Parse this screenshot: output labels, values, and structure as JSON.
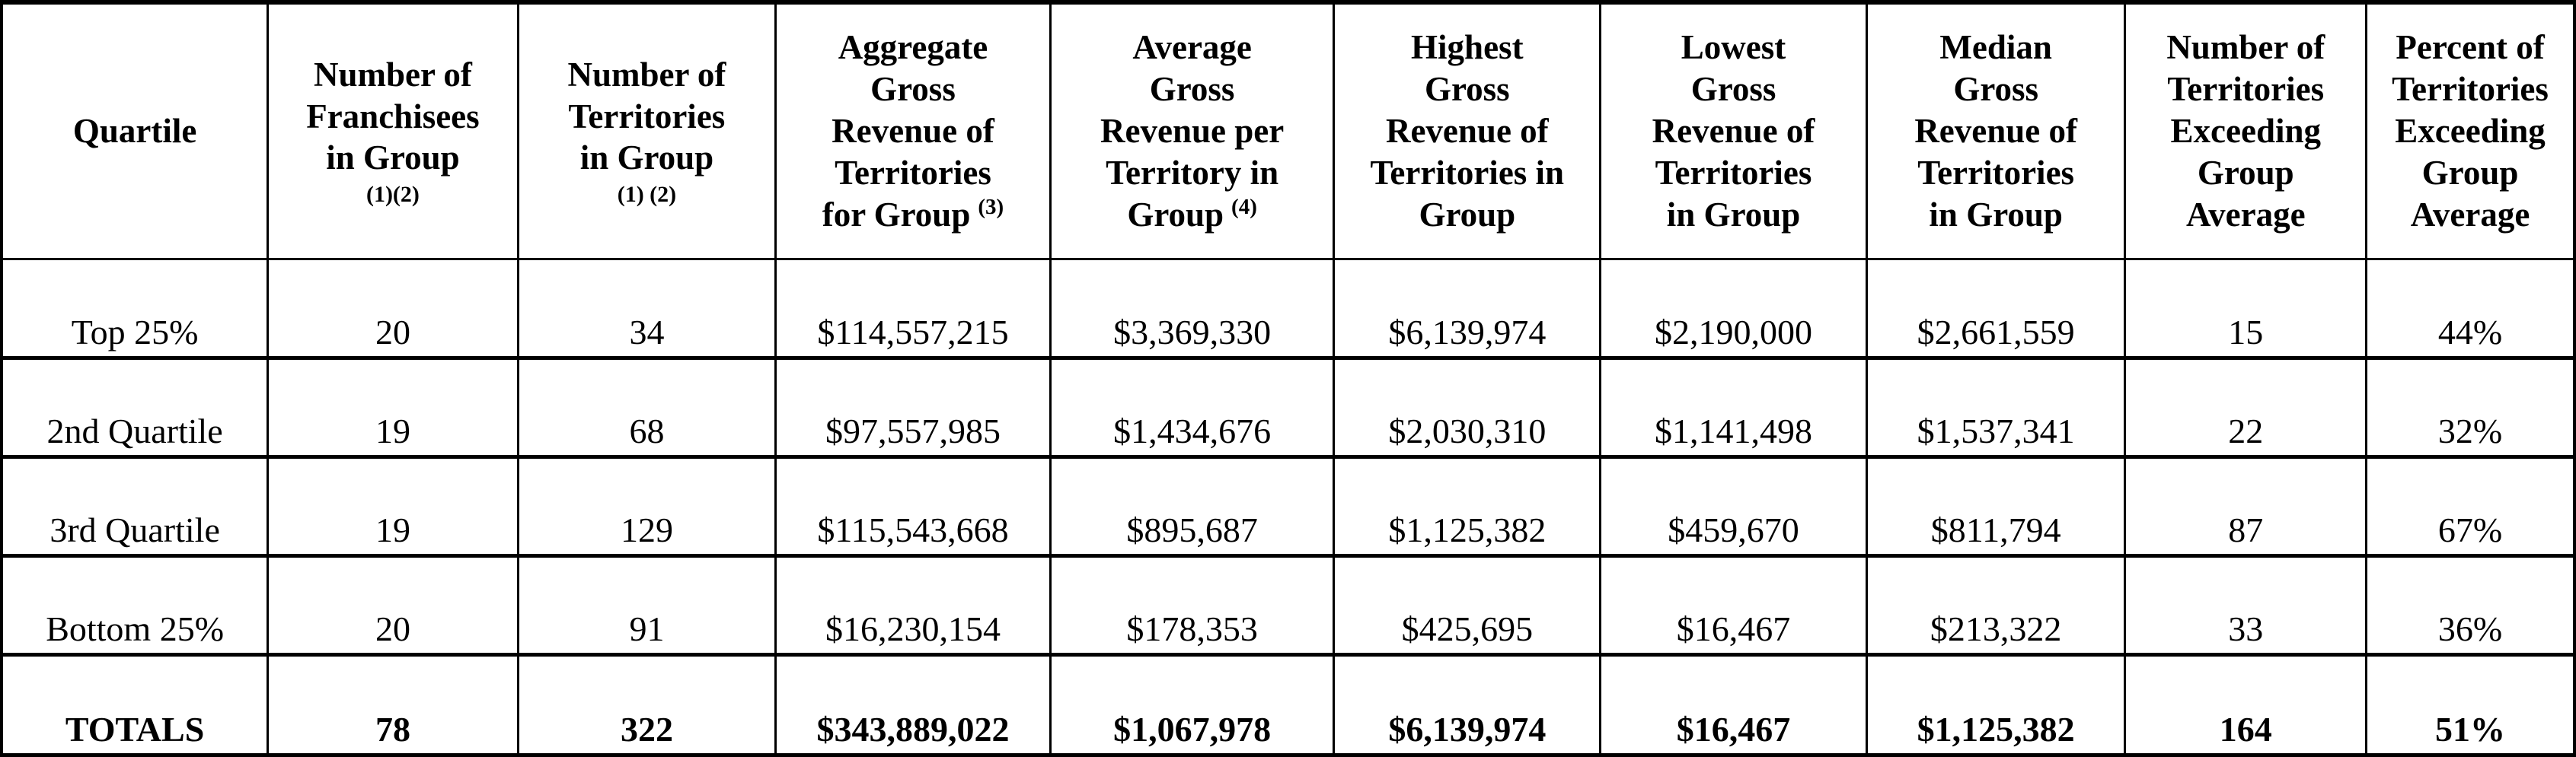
{
  "table": {
    "columns": [
      {
        "label": "Quartile",
        "footnote": "",
        "footnote_style": "none"
      },
      {
        "label": "Number of\nFranchisees\nin Group",
        "footnote": "(1)(2)",
        "footnote_style": "line"
      },
      {
        "label": "Number of\nTerritories\nin Group",
        "footnote": "(1) (2)",
        "footnote_style": "line"
      },
      {
        "label": "Aggregate\nGross\nRevenue of\nTerritories\nfor Group",
        "footnote": "(3)",
        "footnote_style": "sup"
      },
      {
        "label": "Average\nGross\nRevenue per\nTerritory in\nGroup",
        "footnote": "(4)",
        "footnote_style": "sup"
      },
      {
        "label": "Highest\nGross\nRevenue of\nTerritories in\nGroup",
        "footnote": "",
        "footnote_style": "none"
      },
      {
        "label": "Lowest\nGross\nRevenue of\nTerritories\nin Group",
        "footnote": "",
        "footnote_style": "none"
      },
      {
        "label": "Median\nGross\nRevenue of\nTerritories\nin Group",
        "footnote": "",
        "footnote_style": "none"
      },
      {
        "label": "Number of\nTerritories\nExceeding\nGroup\nAverage",
        "footnote": "",
        "footnote_style": "none"
      },
      {
        "label": "Percent of\nTerritories\nExceeding\nGroup\nAverage",
        "footnote": "",
        "footnote_style": "none"
      }
    ],
    "rows": [
      {
        "bold": false,
        "cells": [
          "Top 25%",
          "20",
          "34",
          "$114,557,215",
          "$3,369,330",
          "$6,139,974",
          "$2,190,000",
          "$2,661,559",
          "15",
          "44%"
        ]
      },
      {
        "bold": false,
        "cells": [
          "2nd Quartile",
          "19",
          "68",
          "$97,557,985",
          "$1,434,676",
          "$2,030,310",
          "$1,141,498",
          "$1,537,341",
          "22",
          "32%"
        ]
      },
      {
        "bold": false,
        "cells": [
          "3rd Quartile",
          "19",
          "129",
          "$115,543,668",
          "$895,687",
          "$1,125,382",
          "$459,670",
          "$811,794",
          "87",
          "67%"
        ]
      },
      {
        "bold": false,
        "cells": [
          "Bottom 25%",
          "20",
          "91",
          "$16,230,154",
          "$178,353",
          "$425,695",
          "$16,467",
          "$213,322",
          "33",
          "36%"
        ]
      },
      {
        "bold": true,
        "cells": [
          "TOTALS",
          "78",
          "322",
          "$343,889,022",
          "$1,067,978",
          "$6,139,974",
          "$16,467",
          "$1,125,382",
          "164",
          "51%"
        ]
      }
    ]
  }
}
